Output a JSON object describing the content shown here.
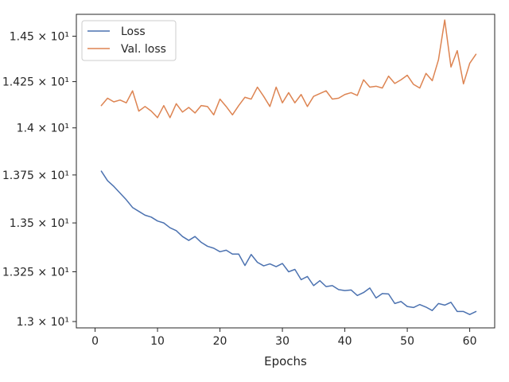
{
  "chart_data": {
    "type": "line",
    "xlabel": "Epochs",
    "ylabel": "",
    "xlim": [
      -3.0,
      64.0
    ],
    "ylim": [
      12.9685,
      14.6218
    ],
    "yscale": "log",
    "grid": false,
    "legend_position": "upper-left",
    "x_ticks": [
      0,
      10,
      20,
      30,
      40,
      50,
      60
    ],
    "x_tick_labels": [
      "0",
      "10",
      "20",
      "30",
      "40",
      "50",
      "60"
    ],
    "y_ticks": [
      13.0,
      13.25,
      13.5,
      13.75,
      14.0,
      14.25,
      14.5
    ],
    "y_tick_labels": [
      "1.3 × 10¹",
      "1.325 × 10¹",
      "1.35 × 10¹",
      "1.375 × 10¹",
      "1.4 × 10¹",
      "1.425 × 10¹",
      "1.45 × 10¹"
    ],
    "x": [
      1,
      2,
      3,
      4,
      5,
      6,
      7,
      8,
      9,
      10,
      11,
      12,
      13,
      14,
      15,
      16,
      17,
      18,
      19,
      20,
      21,
      22,
      23,
      24,
      25,
      26,
      27,
      28,
      29,
      30,
      31,
      32,
      33,
      34,
      35,
      36,
      37,
      38,
      39,
      40,
      41,
      42,
      43,
      44,
      45,
      46,
      47,
      48,
      49,
      50,
      51,
      52,
      53,
      54,
      55,
      56,
      57,
      58,
      59,
      60,
      61
    ],
    "series": [
      {
        "name": "Loss",
        "color": "#4c72b0",
        "values": [
          13.77,
          13.72,
          13.69,
          13.655,
          13.62,
          13.58,
          13.56,
          13.54,
          13.53,
          13.51,
          13.5,
          13.475,
          13.46,
          13.43,
          13.41,
          13.43,
          13.4,
          13.38,
          13.37,
          13.352,
          13.36,
          13.34,
          13.34,
          13.282,
          13.338,
          13.298,
          13.28,
          13.29,
          13.276,
          13.292,
          13.25,
          13.262,
          13.21,
          13.226,
          13.18,
          13.205,
          13.175,
          13.18,
          13.16,
          13.155,
          13.158,
          13.13,
          13.145,
          13.168,
          13.118,
          13.14,
          13.138,
          13.09,
          13.1,
          13.075,
          13.07,
          13.085,
          13.072,
          13.055,
          13.09,
          13.082,
          13.096,
          13.05,
          13.05,
          13.035,
          13.05
        ]
      },
      {
        "name": "Val. loss",
        "color": "#dd8452",
        "values": [
          14.12,
          14.16,
          14.14,
          14.15,
          14.135,
          14.2,
          14.09,
          14.115,
          14.09,
          14.055,
          14.12,
          14.055,
          14.13,
          14.085,
          14.11,
          14.08,
          14.12,
          14.115,
          14.07,
          14.155,
          14.115,
          14.07,
          14.12,
          14.165,
          14.155,
          14.22,
          14.17,
          14.115,
          14.22,
          14.135,
          14.19,
          14.135,
          14.18,
          14.115,
          14.17,
          14.185,
          14.2,
          14.155,
          14.16,
          14.18,
          14.19,
          14.175,
          14.26,
          14.22,
          14.225,
          14.215,
          14.28,
          14.24,
          14.26,
          14.285,
          14.235,
          14.215,
          14.295,
          14.255,
          14.37,
          14.59,
          14.33,
          14.42,
          14.238,
          14.35,
          14.4
        ]
      }
    ]
  }
}
